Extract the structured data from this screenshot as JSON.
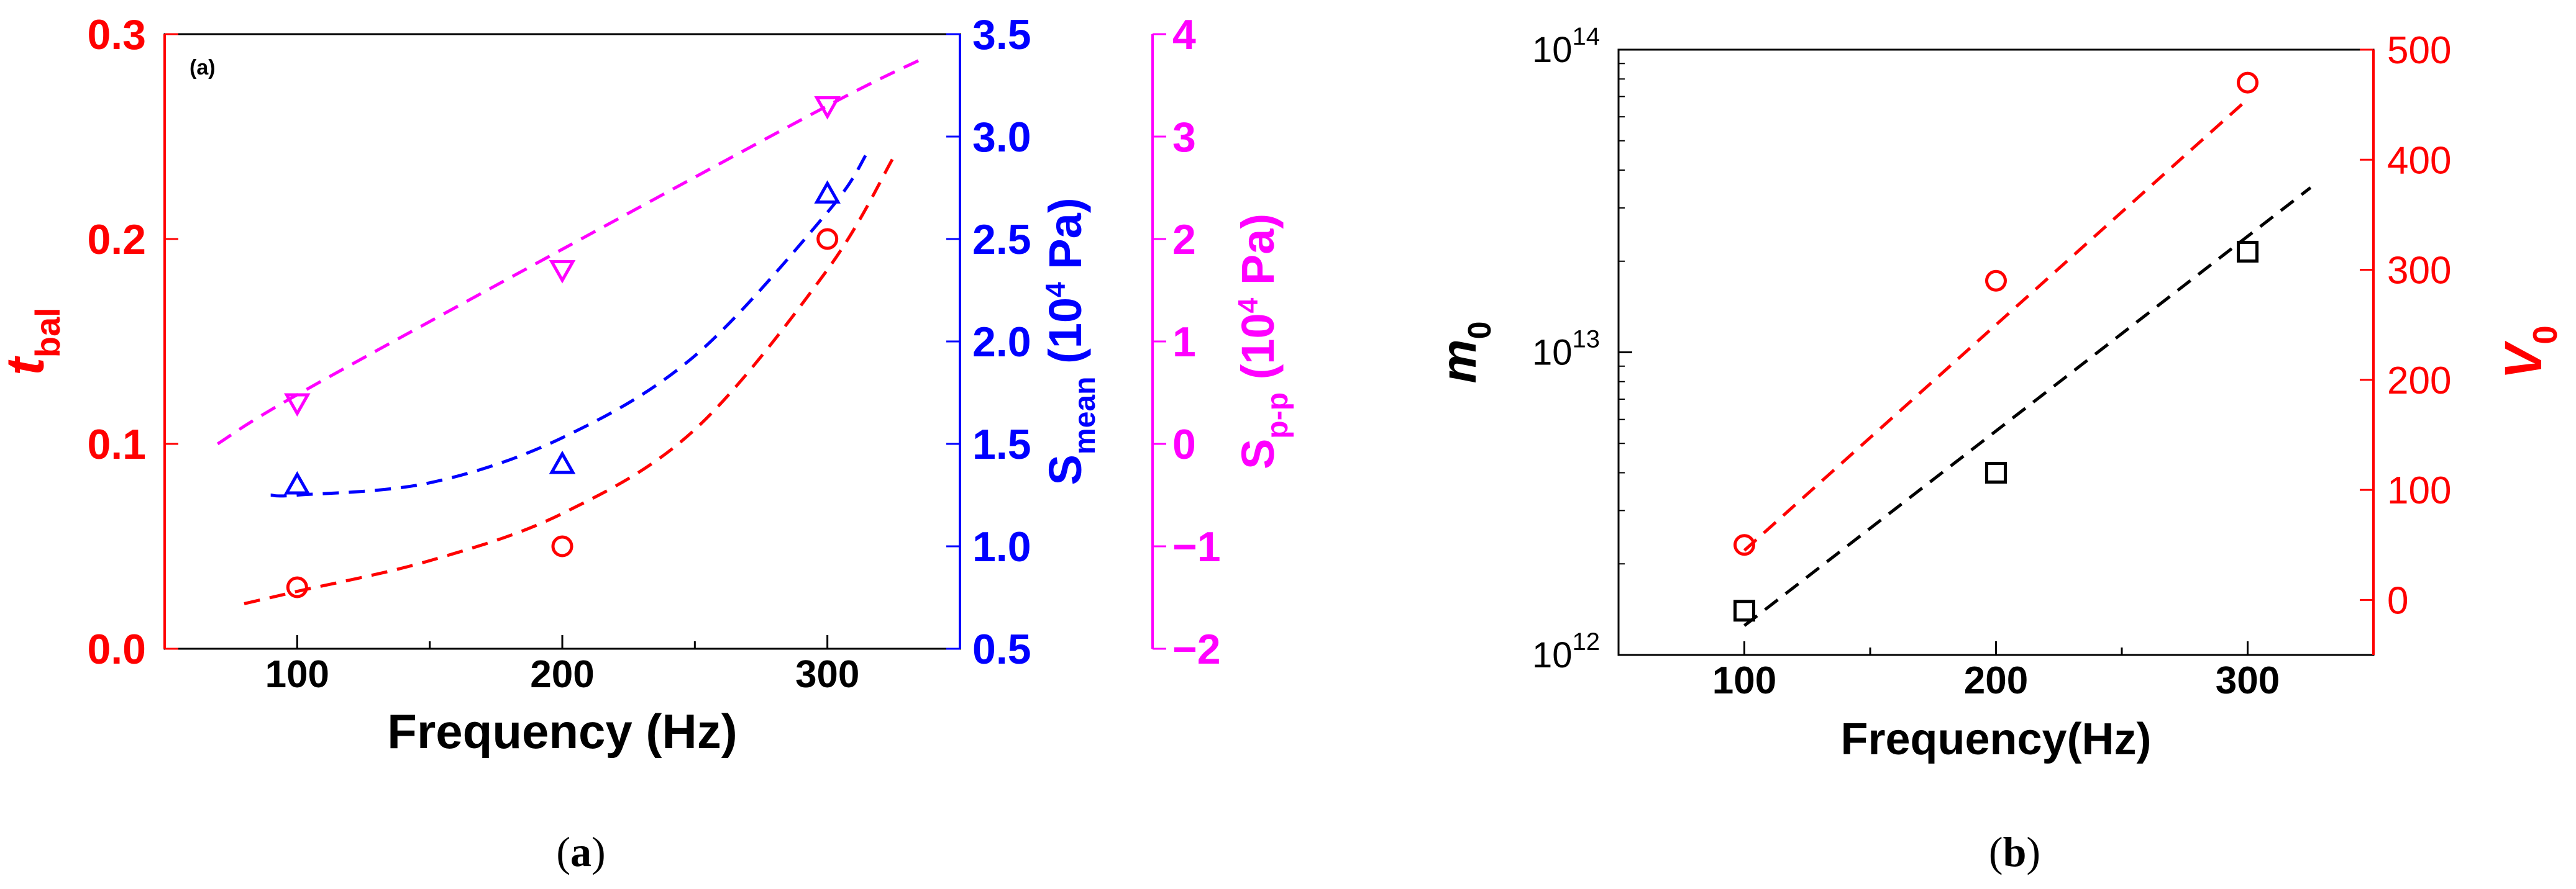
{
  "chart_data": [
    {
      "id": "a",
      "type": "scatter",
      "panel_tag": "(a)",
      "caption": {
        "open": "(",
        "letter": "a",
        "close": ")"
      },
      "xlabel": "Frequency (Hz)",
      "xlim": [
        50,
        350
      ],
      "xticks": [
        100,
        200,
        300
      ],
      "axes": {
        "left": {
          "label": {
            "main": "t",
            "sub": "bal"
          },
          "color": "#ff0000",
          "lim": [
            0,
            0.3
          ],
          "ticks": [
            "0.0",
            "0.1",
            "0.2",
            "0.3"
          ]
        },
        "right1": {
          "label": {
            "main": "S",
            "sub": "mean",
            "rest": " (10",
            "sup": "4",
            "end": " Pa)"
          },
          "color": "#0000ff",
          "lim": [
            0.5,
            3.5
          ],
          "ticks": [
            "0.5",
            "1.0",
            "1.5",
            "2.0",
            "2.5",
            "3.0",
            "3.5"
          ]
        },
        "right2": {
          "label": {
            "main": "S",
            "sub": "p-p",
            "rest": " (10",
            "sup": "4",
            "end": " Pa)"
          },
          "color": "#ff00ff",
          "lim": [
            -2,
            4
          ],
          "ticks": [
            "−2",
            "−1",
            "0",
            "1",
            "2",
            "3",
            "4"
          ]
        }
      },
      "series": [
        {
          "axis": "left",
          "color": "#ff0000",
          "marker": "circle",
          "x": [
            100,
            200,
            300
          ],
          "y": [
            0.03,
            0.05,
            0.2
          ],
          "fit_x": [
            80,
            100,
            150,
            200,
            250,
            300,
            325
          ],
          "fit_y": [
            0.022,
            0.028,
            0.043,
            0.066,
            0.107,
            0.185,
            0.24
          ]
        },
        {
          "axis": "right1",
          "color": "#0000ff",
          "marker": "triangle-up",
          "x": [
            100,
            200,
            300
          ],
          "y": [
            1.3,
            1.4,
            2.72
          ],
          "fit_x": [
            90,
            100,
            150,
            200,
            250,
            300,
            315
          ],
          "fit_y": [
            1.25,
            1.25,
            1.31,
            1.53,
            1.93,
            2.63,
            2.92
          ]
        },
        {
          "axis": "right2",
          "color": "#ff00ff",
          "marker": "triangle-down",
          "x": [
            100,
            200,
            300
          ],
          "y": [
            0.4,
            1.7,
            3.3
          ],
          "fit_x": [
            70,
            100,
            200,
            300,
            335
          ],
          "fit_y": [
            0.0,
            0.48,
            1.9,
            3.3,
            3.75
          ]
        }
      ]
    },
    {
      "id": "b",
      "type": "scatter",
      "caption": {
        "open": "(",
        "letter": "b",
        "close": ")"
      },
      "xlabel": "Frequency(Hz)",
      "xlim": [
        50,
        350
      ],
      "xticks": [
        100,
        200,
        300
      ],
      "axes": {
        "left": {
          "label": {
            "main": "m",
            "sub": "0"
          },
          "color": "#000000",
          "scale": "log",
          "lim": [
            1000000000000.0,
            100000000000000.0
          ],
          "ticks": [
            {
              "base": "10",
              "exp": "12"
            },
            {
              "base": "10",
              "exp": "13"
            },
            {
              "base": "10",
              "exp": "14"
            }
          ]
        },
        "right": {
          "label": {
            "main": "V",
            "sub": "0"
          },
          "color": "#ff0000",
          "lim": [
            -50,
            500
          ],
          "ticks": [
            "0",
            "100",
            "200",
            "300",
            "400",
            "500"
          ]
        }
      },
      "series": [
        {
          "axis": "left",
          "color": "#000000",
          "marker": "square",
          "x": [
            100,
            200,
            300
          ],
          "y": [
            1400000000000.0,
            4000000000000.0,
            21500000000000.0
          ],
          "fit_x": [
            100,
            325
          ],
          "fit_y": [
            1250000000000.0,
            35000000000000.0
          ]
        },
        {
          "axis": "right",
          "color": "#ff0000",
          "marker": "circle",
          "x": [
            100,
            200,
            300
          ],
          "y": [
            50,
            290,
            470
          ],
          "fit_x": [
            100,
            300
          ],
          "fit_y": [
            45,
            455
          ]
        }
      ]
    }
  ]
}
